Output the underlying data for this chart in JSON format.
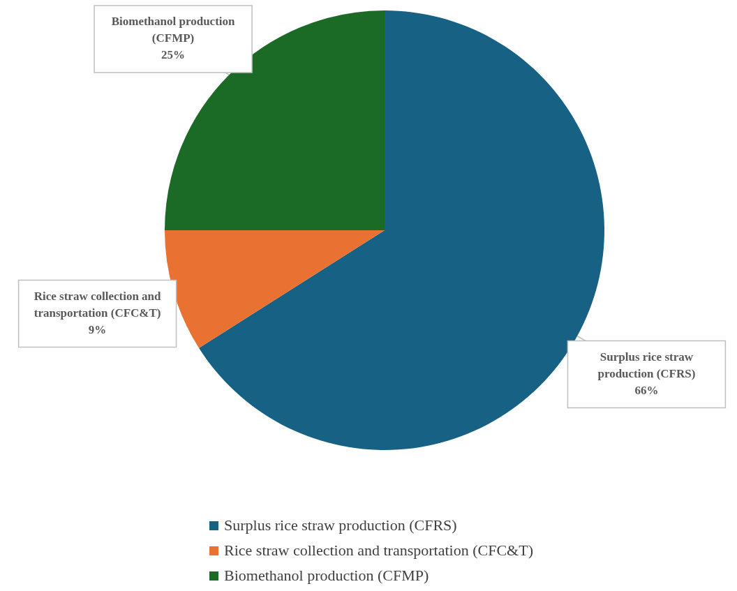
{
  "chart_data": {
    "type": "pie",
    "categories": [
      "Surplus rice straw production (CFRS)",
      "Rice straw collection and transportation (CFC&T)",
      "Biomethanol production (CFMP)"
    ],
    "values": [
      66,
      9,
      25
    ],
    "colors": [
      "#176185",
      "#e97132",
      "#1b6b27"
    ],
    "value_labels": [
      "66%",
      "9%",
      "25%"
    ],
    "legend": "bottom"
  }
}
